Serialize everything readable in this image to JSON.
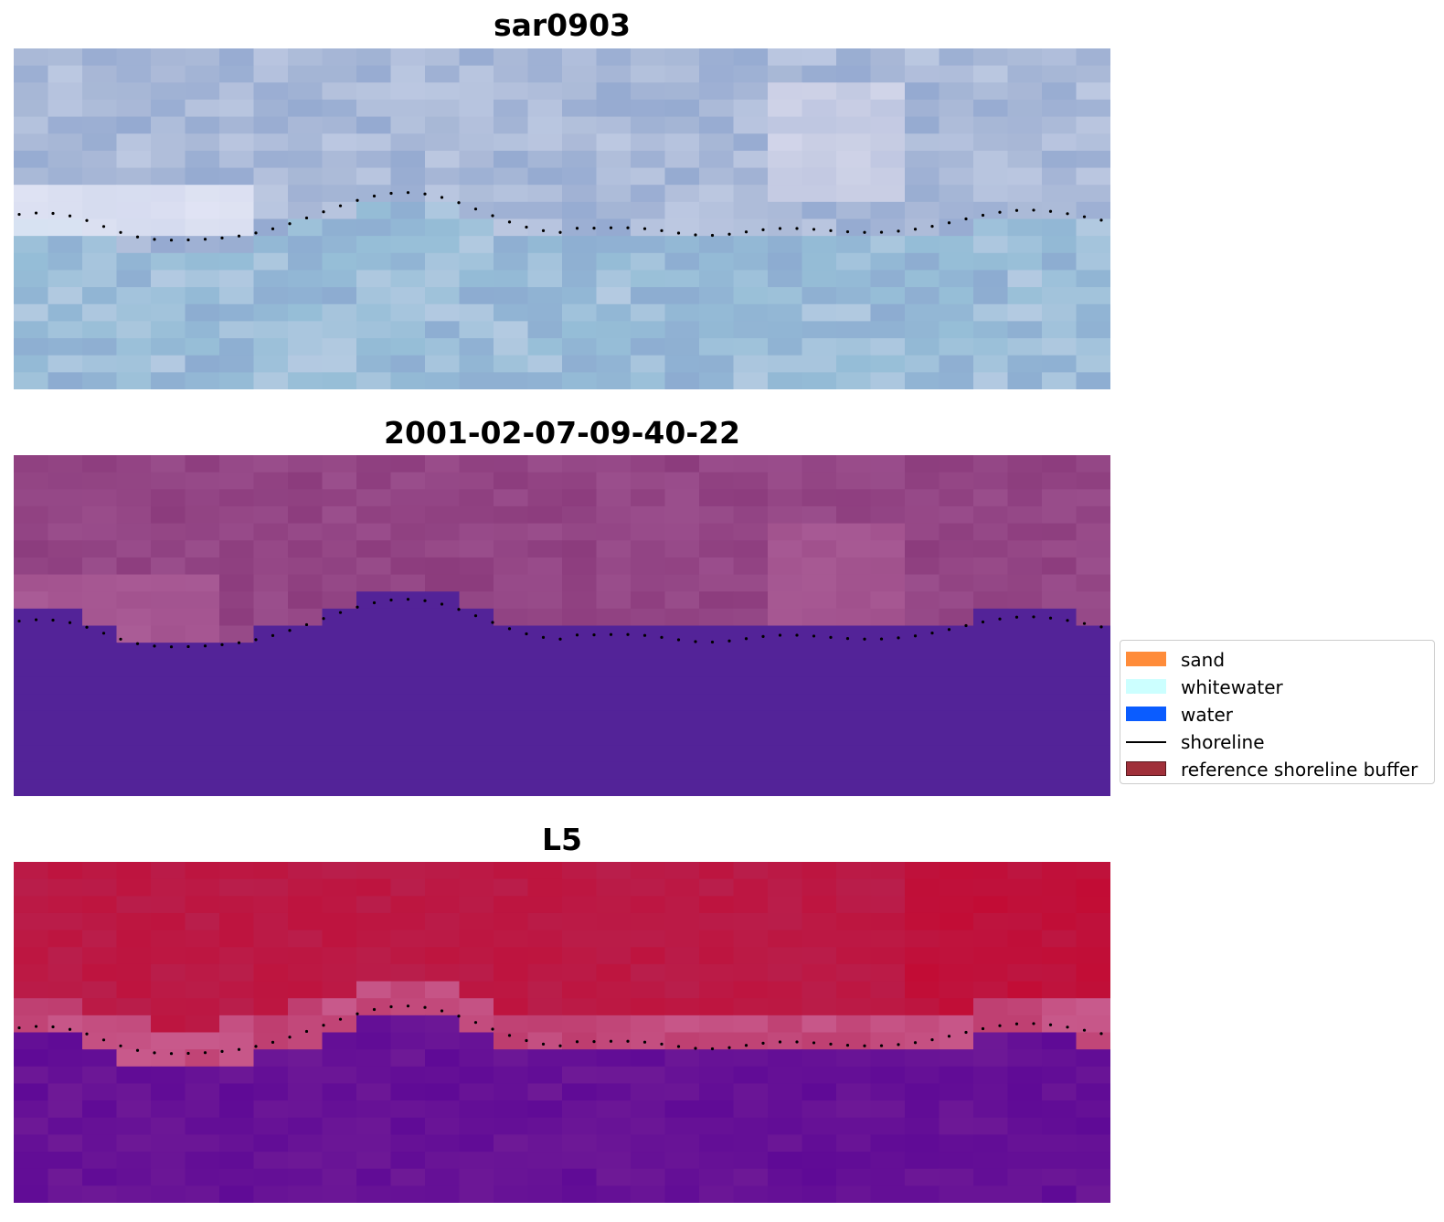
{
  "panels": [
    {
      "title": "sar0903",
      "kind": "sar"
    },
    {
      "title": "2001-02-07-09-40-22",
      "kind": "classified"
    },
    {
      "title": "L5",
      "kind": "l5"
    }
  ],
  "legend": {
    "items": [
      {
        "label": "sand",
        "type": "patch",
        "color": "#ff8c3a"
      },
      {
        "label": "whitewater",
        "type": "patch",
        "color": "#ccffff"
      },
      {
        "label": "water",
        "type": "patch",
        "color": "#0a5cff"
      },
      {
        "label": "shoreline",
        "type": "line",
        "color": "#000000"
      },
      {
        "label": "reference shoreline buffer",
        "type": "patch",
        "color": "#a0303a"
      }
    ]
  },
  "colors": {
    "classified_water": "#532398",
    "classified_land": "#9a4a8c",
    "l5_land": "#b8204a",
    "l5_water": "#6a1696"
  }
}
